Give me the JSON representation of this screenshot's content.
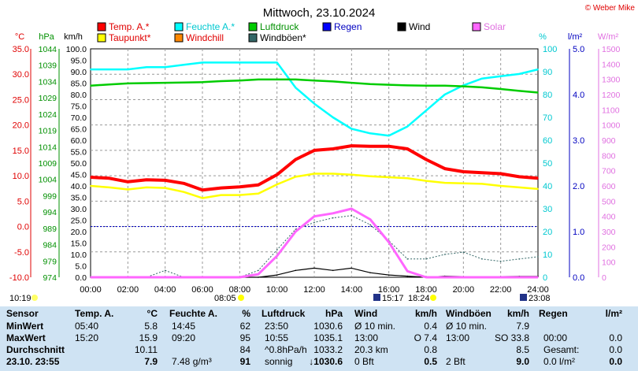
{
  "title": "Mittwoch, 23.10.2024",
  "copyright": "© Weber Mike",
  "legend": [
    {
      "label": "Temp. A.*",
      "color": "#ff0000",
      "text_color": "#e00000"
    },
    {
      "label": "Taupunkt*",
      "color": "#ffff00",
      "text_color": "#e00000"
    },
    {
      "label": "Feuchte A.*",
      "color": "#00ffff",
      "text_color": "#00c8d0"
    },
    {
      "label": "Windchill",
      "color": "#ff8800",
      "text_color": "#e00000"
    },
    {
      "label": "Luftdruck",
      "color": "#00cc00",
      "text_color": "#009000"
    },
    {
      "label": "Windböen*",
      "color": "#336666",
      "text_color": "#000000"
    },
    {
      "label": "Regen",
      "color": "#0000ff",
      "text_color": "#0000c0"
    },
    {
      "label": "Wind",
      "color": "#000000",
      "text_color": "#000000"
    },
    {
      "label": "Solar",
      "color": "#ff66ff",
      "text_color": "#e070e0"
    }
  ],
  "axis_units": {
    "temp": "°C",
    "pressure": "hPa",
    "wind": "km/h",
    "humidity": "%",
    "rain": "l/m²",
    "solar": "W/m²"
  },
  "axis_ticks": {
    "temp": [
      "35.0",
      "30.0",
      "25.0",
      "20.0",
      "15.0",
      "10.0",
      "5.0",
      "0.0",
      "-5.0",
      "-10.0"
    ],
    "pressure": [
      "1044",
      "1039",
      "1034",
      "1029",
      "1024",
      "1019",
      "1014",
      "1009",
      "1004",
      "999",
      "994",
      "989",
      "984",
      "979",
      "974"
    ],
    "wind": [
      "100.0",
      "95.0",
      "90.0",
      "85.0",
      "80.0",
      "75.0",
      "70.0",
      "65.0",
      "60.0",
      "55.0",
      "50.0",
      "45.0",
      "40.0",
      "35.0",
      "30.0",
      "25.0",
      "20.0",
      "15.0",
      "10.0",
      "5.0",
      "0.0"
    ],
    "humidity": [
      "100",
      "90",
      "80",
      "70",
      "60",
      "50",
      "40",
      "30",
      "20",
      "10",
      "0"
    ],
    "rain": [
      "5.0",
      "4.0",
      "3.0",
      "2.0",
      "1.0",
      "0.0"
    ],
    "solar": [
      "1500",
      "1400",
      "1300",
      "1200",
      "1100",
      "1000",
      "900",
      "800",
      "700",
      "600",
      "500",
      "400",
      "300",
      "200",
      "100",
      "0"
    ],
    "time": [
      "00:00",
      "02:00",
      "04:00",
      "06:00",
      "08:00",
      "10:00",
      "12:00",
      "14:00",
      "16:00",
      "18:00",
      "20:00",
      "22:00",
      "24:00"
    ]
  },
  "sun_markers": {
    "sunrise": "08:05",
    "sunset": "18:24",
    "moonrise": "10:19",
    "moonset_a": "15:17",
    "moonset_b": "23:08"
  },
  "chart_data": {
    "type": "line",
    "x": [
      "00:00",
      "01:00",
      "02:00",
      "03:00",
      "04:00",
      "05:00",
      "06:00",
      "07:00",
      "08:00",
      "09:00",
      "10:00",
      "11:00",
      "12:00",
      "13:00",
      "14:00",
      "15:00",
      "16:00",
      "17:00",
      "18:00",
      "19:00",
      "20:00",
      "21:00",
      "22:00",
      "23:00",
      "24:00"
    ],
    "series": [
      {
        "name": "Temp. A.*",
        "axis": "temp",
        "color": "#ff0000",
        "values": [
          9.7,
          9.5,
          8.8,
          9.2,
          9.1,
          8.5,
          7.2,
          7.6,
          7.8,
          8.2,
          10.2,
          13.2,
          15.0,
          15.3,
          15.9,
          15.8,
          15.8,
          15.3,
          13.2,
          11.4,
          10.8,
          10.6,
          10.4,
          9.8,
          9.5
        ]
      },
      {
        "name": "Taupunkt*",
        "axis": "temp",
        "color": "#ffff00",
        "values": [
          8.0,
          7.7,
          7.3,
          7.7,
          7.6,
          6.8,
          5.6,
          6.2,
          6.2,
          6.5,
          8.3,
          9.8,
          10.4,
          10.4,
          10.2,
          9.9,
          9.7,
          9.5,
          9.0,
          8.6,
          8.5,
          8.4,
          8.0,
          7.7,
          7.4
        ]
      },
      {
        "name": "Feuchte A.*",
        "axis": "humidity",
        "color": "#00ffff",
        "values": [
          91,
          91,
          91,
          92,
          92,
          93,
          94,
          94,
          94,
          94,
          94,
          83,
          76,
          70,
          65,
          63,
          62,
          66,
          73,
          80,
          84,
          87,
          88,
          89,
          91
        ]
      },
      {
        "name": "Luftdruck",
        "axis": "pressure",
        "color": "#00cc00",
        "values": [
          1032.7,
          1033.1,
          1033.4,
          1033.5,
          1033.6,
          1033.7,
          1033.8,
          1034.1,
          1034.3,
          1034.6,
          1034.6,
          1034.6,
          1034.3,
          1034.0,
          1033.6,
          1033.2,
          1033.0,
          1032.8,
          1032.7,
          1032.7,
          1032.5,
          1032.2,
          1031.7,
          1031.1,
          1030.6
        ]
      },
      {
        "name": "Windböen*",
        "axis": "wind",
        "color": "#336666",
        "values": [
          0,
          0,
          0,
          0,
          3,
          0,
          0,
          0,
          0,
          3,
          12,
          21,
          24,
          26,
          27,
          23,
          16,
          8,
          8,
          10,
          11,
          8,
          7,
          8,
          9
        ]
      },
      {
        "name": "Wind",
        "axis": "wind",
        "color": "#000000",
        "values": [
          0,
          0,
          0,
          0,
          0,
          0,
          0,
          0,
          0,
          0,
          1,
          3,
          4,
          3,
          4,
          2,
          1,
          0.5,
          0,
          0.5,
          0.3,
          0.2,
          0.3,
          0.4,
          0.4
        ]
      },
      {
        "name": "Solar",
        "axis": "solar",
        "color": "#ff66ff",
        "values": [
          0,
          0,
          0,
          0,
          0,
          0,
          0,
          0,
          0,
          20,
          140,
          300,
          400,
          420,
          450,
          380,
          230,
          40,
          0,
          0,
          0,
          0,
          0,
          0,
          0
        ]
      }
    ],
    "ylim_temp": [
      -10,
      35
    ],
    "ylim_humidity": [
      0,
      100
    ],
    "ylim_pressure": [
      974,
      1044
    ],
    "ylim_wind": [
      0,
      100
    ],
    "ylim_solar": [
      0,
      1500
    ]
  },
  "table": {
    "headers": [
      "Sensor",
      "Temp. A.",
      "°C",
      "Feuchte A.",
      "%",
      "Luftdruck",
      "hPa",
      "Wind",
      "km/h",
      "Windböen",
      "km/h",
      "Regen",
      "l/m²"
    ],
    "rows": [
      {
        "label": "MinWert",
        "cells": [
          "05:40",
          "5.8",
          "14:45",
          "62",
          "23:50",
          "1030.6",
          "Ø 10 min.",
          "0.4",
          "Ø 10 min.",
          "7.9",
          "",
          ""
        ]
      },
      {
        "label": "MaxWert",
        "cells": [
          "15:20",
          "15.9",
          "09:20",
          "95",
          "10:55",
          "1035.1",
          "13:00",
          "O 7.4",
          "13:00",
          "SO 33.8",
          "00:00",
          "0.0"
        ]
      },
      {
        "label": "Durchschnitt",
        "cells": [
          "",
          "10.11",
          "",
          "84",
          "^0.8hPa/h",
          "1033.2",
          "20.3 km",
          "0.8",
          "",
          "8.5",
          "Gesamt:",
          "0.0"
        ]
      },
      {
        "label": "23.10. 23:55",
        "cells": [
          "",
          "7.9",
          "7.48 g/m³",
          "91",
          "sonnig",
          "↓1030.6",
          "0 Bft",
          "0.5",
          "2 Bft",
          "9.0",
          "0.0 l/m²",
          "0.0"
        ]
      }
    ]
  }
}
